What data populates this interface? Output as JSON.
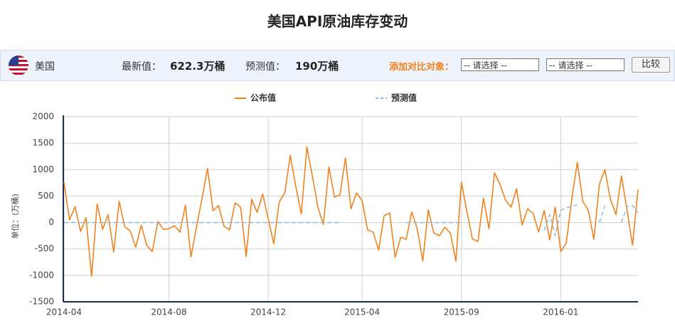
{
  "header": {
    "title": "美国API原油库存变动",
    "country": "美国",
    "latest_label": "最新值：",
    "latest_value": "622.3万桶",
    "forecast_label": "预测值：",
    "forecast_value": "190万桶",
    "compare_label": "添加对比对象：",
    "select_1": "-- 请选择 --",
    "select_2": "-- 请选择 --",
    "button": "比较"
  },
  "chart_data": {
    "type": "line",
    "y_label": "单位：(万桶)",
    "ylim": [
      -1500,
      2000
    ],
    "yticks": [
      -1500,
      -1000,
      -500,
      0,
      500,
      1000,
      1500,
      2000
    ],
    "grid": true,
    "legend": "top",
    "categories": [
      "2014-04",
      null,
      null,
      null,
      null,
      null,
      null,
      null,
      null,
      null,
      null,
      null,
      null,
      null,
      null,
      null,
      null,
      null,
      null,
      "2014-08",
      null,
      null,
      null,
      null,
      null,
      null,
      null,
      null,
      null,
      null,
      null,
      null,
      null,
      null,
      null,
      null,
      null,
      "2014-12",
      null,
      null,
      null,
      null,
      null,
      null,
      null,
      null,
      null,
      null,
      null,
      null,
      null,
      null,
      null,
      null,
      "2015-04",
      null,
      null,
      null,
      null,
      null,
      null,
      null,
      null,
      null,
      null,
      null,
      null,
      null,
      null,
      null,
      null,
      null,
      "2015-09",
      null,
      null,
      null,
      null,
      null,
      null,
      null,
      null,
      null,
      null,
      null,
      null,
      null,
      null,
      null,
      null,
      null,
      "2016-01",
      null,
      null,
      null,
      null,
      null,
      null,
      null,
      null,
      null,
      null,
      null,
      null,
      null,
      null
    ],
    "series": [
      {
        "name": "公布值",
        "color": "#f0821e",
        "dashed": false,
        "values": [
          760,
          50,
          300,
          -170,
          90,
          -1020,
          350,
          -130,
          150,
          -560,
          400,
          -80,
          -160,
          -470,
          -50,
          -430,
          -550,
          20,
          -130,
          -120,
          -60,
          -180,
          330,
          -650,
          -90,
          450,
          1020,
          220,
          320,
          -70,
          -140,
          370,
          290,
          -640,
          440,
          190,
          540,
          70,
          -400,
          390,
          560,
          1270,
          680,
          160,
          1430,
          880,
          290,
          -40,
          1050,
          480,
          520,
          1220,
          260,
          560,
          420,
          -140,
          -180,
          -520,
          130,
          180,
          -660,
          -280,
          -320,
          200,
          -120,
          -730,
          240,
          -200,
          -250,
          -90,
          -200,
          -730,
          760,
          210,
          -310,
          -360,
          460,
          -120,
          940,
          720,
          420,
          290,
          640,
          -50,
          260,
          170,
          -180,
          230,
          -330,
          290,
          -550,
          -390,
          440,
          1140,
          400,
          230,
          -320,
          720,
          1000,
          440,
          150,
          880,
          240,
          -430,
          622.3
        ]
      },
      {
        "name": "预测值",
        "color": "#8db8e2",
        "dashed": true,
        "values": [
          0,
          0,
          0,
          0,
          0,
          0,
          0,
          0,
          0,
          0,
          0,
          0,
          0,
          0,
          0,
          0,
          0,
          0,
          0,
          0,
          0,
          0,
          0,
          0,
          0,
          0,
          0,
          0,
          0,
          0,
          0,
          0,
          0,
          0,
          0,
          0,
          0,
          0,
          0,
          0,
          0,
          0,
          0,
          0,
          0,
          0,
          0,
          0,
          0,
          0,
          0,
          null,
          null,
          null,
          null,
          null,
          null,
          null,
          null,
          null,
          null,
          null,
          0,
          0,
          0,
          0,
          0,
          0,
          0,
          0,
          0,
          0,
          0,
          null,
          null,
          null,
          null,
          null,
          null,
          null,
          null,
          null,
          null,
          null,
          null,
          null,
          null,
          -150,
          150,
          -250,
          230,
          280,
          310,
          330,
          null,
          null,
          null,
          0,
          320,
          null,
          null,
          0,
          300,
          320,
          190
        ]
      }
    ]
  }
}
